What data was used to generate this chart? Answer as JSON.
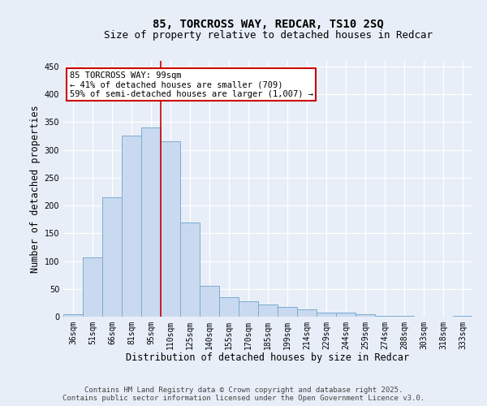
{
  "title_line1": "85, TORCROSS WAY, REDCAR, TS10 2SQ",
  "title_line2": "Size of property relative to detached houses in Redcar",
  "xlabel": "Distribution of detached houses by size in Redcar",
  "ylabel": "Number of detached properties",
  "categories": [
    "36sqm",
    "51sqm",
    "66sqm",
    "81sqm",
    "95sqm",
    "110sqm",
    "125sqm",
    "140sqm",
    "155sqm",
    "170sqm",
    "185sqm",
    "199sqm",
    "214sqm",
    "229sqm",
    "244sqm",
    "259sqm",
    "274sqm",
    "288sqm",
    "303sqm",
    "318sqm",
    "333sqm"
  ],
  "values": [
    5,
    107,
    215,
    325,
    340,
    315,
    170,
    55,
    35,
    28,
    22,
    17,
    13,
    8,
    7,
    4,
    1,
    1,
    0,
    0,
    2
  ],
  "bar_color": "#c9daf0",
  "bar_edge_color": "#7aabcf",
  "vline_x": 4.5,
  "vline_color": "#cc0000",
  "ylim": [
    0,
    460
  ],
  "yticks": [
    0,
    50,
    100,
    150,
    200,
    250,
    300,
    350,
    400,
    450
  ],
  "annotation_text": "85 TORCROSS WAY: 99sqm\n← 41% of detached houses are smaller (709)\n59% of semi-detached houses are larger (1,007) →",
  "annotation_box_color": "#ffffff",
  "annotation_box_edge": "#cc0000",
  "footer_line1": "Contains HM Land Registry data © Crown copyright and database right 2025.",
  "footer_line2": "Contains public sector information licensed under the Open Government Licence v3.0.",
  "bg_color": "#e8eef8",
  "plot_bg_color": "#e8eef8",
  "grid_color": "#ffffff",
  "title_fontsize": 10,
  "subtitle_fontsize": 9,
  "tick_fontsize": 7,
  "label_fontsize": 8.5,
  "footer_fontsize": 6.5,
  "annotation_fontsize": 7.5
}
